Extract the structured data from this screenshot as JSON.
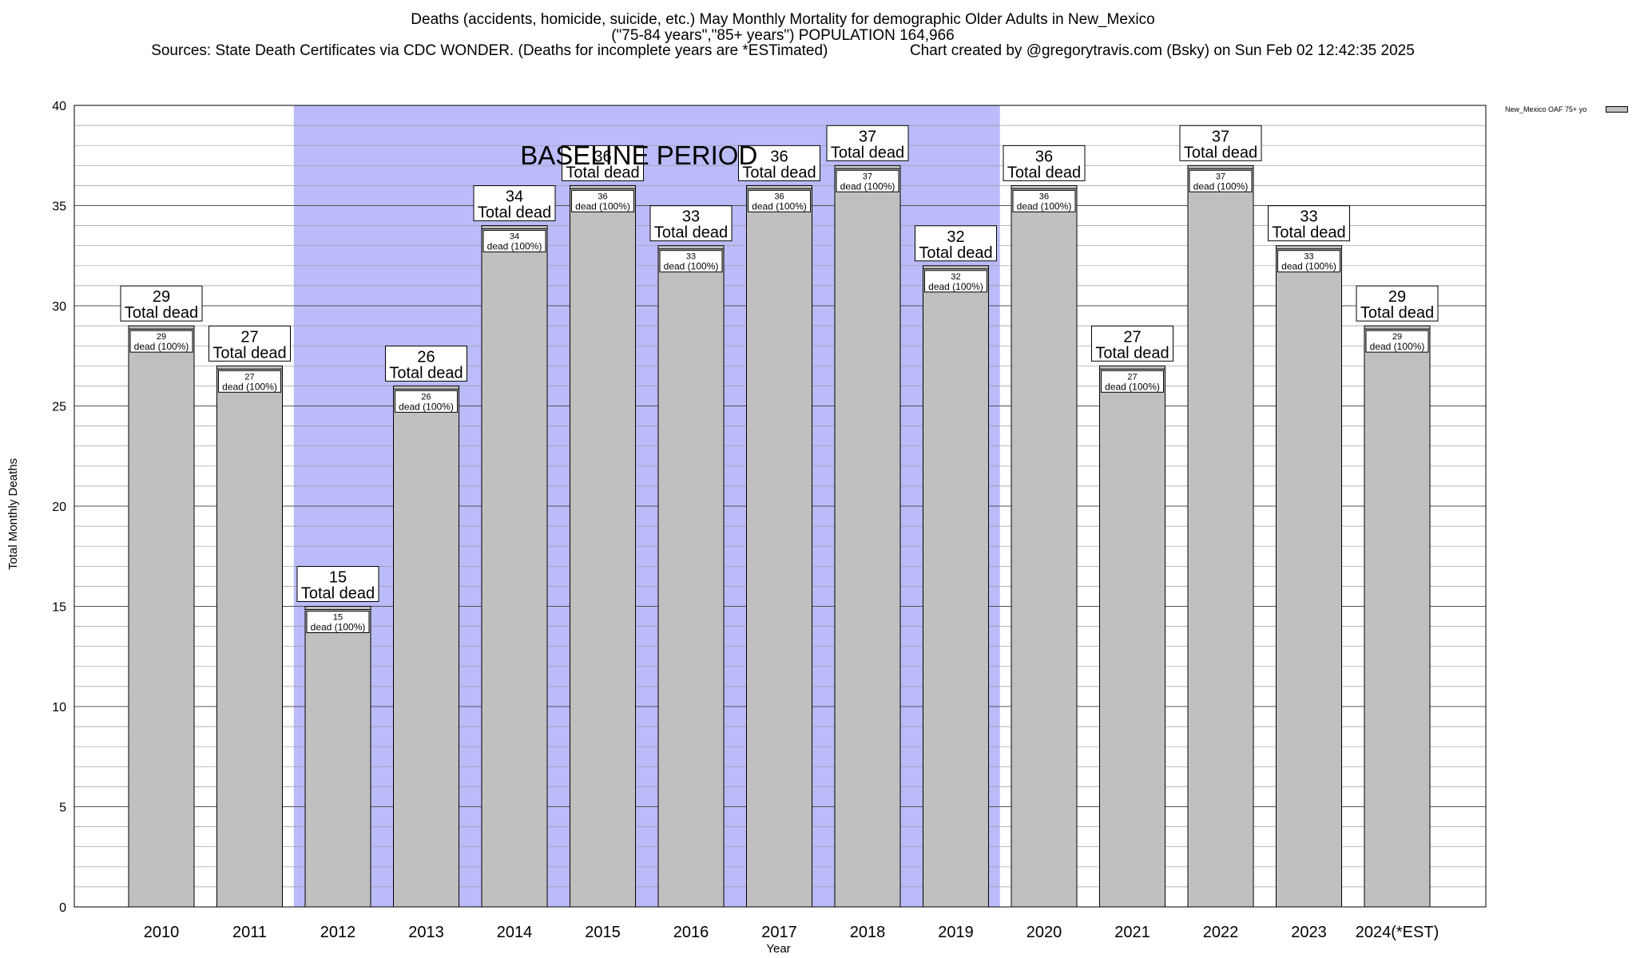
{
  "chart_data": {
    "type": "bar",
    "title": "Deaths (accidents, homicide, suicide, etc.) May Monthly Mortality for demographic Older Adults in New_Mexico",
    "subtitle": "(\"75-84 years\",\"85+ years\") POPULATION 164,966",
    "sources": "Sources: State Death Certificates via CDC WONDER. (Deaths for incomplete years are *ESTimated)",
    "credit": "Chart created by @gregorytravis.com (Bsky) on Sun Feb 02 12:42:35 2025",
    "xlabel": "Year",
    "ylabel": "Total Monthly Deaths",
    "ylim": [
      0,
      40
    ],
    "yticks": [
      0,
      5,
      10,
      15,
      20,
      25,
      30,
      35,
      40
    ],
    "grid": true,
    "legend_position": "top-right",
    "series": [
      {
        "name": "New_Mexico OAF 75+ yo",
        "color": "#c0c0c0"
      }
    ],
    "categories": [
      "2010",
      "2011",
      "2012",
      "2013",
      "2014",
      "2015",
      "2016",
      "2017",
      "2018",
      "2019",
      "2020",
      "2021",
      "2022",
      "2023",
      "2024(*EST)"
    ],
    "values": [
      29,
      27,
      15,
      26,
      34,
      36,
      33,
      36,
      37,
      32,
      36,
      27,
      37,
      33,
      29
    ],
    "top_label_suffix": "Total dead",
    "inner_label_suffix": "dead (100%)",
    "baseline": {
      "label": "BASELINE PERIOD",
      "from": "2012",
      "to": "2019",
      "color": "#bbbbfa"
    }
  }
}
